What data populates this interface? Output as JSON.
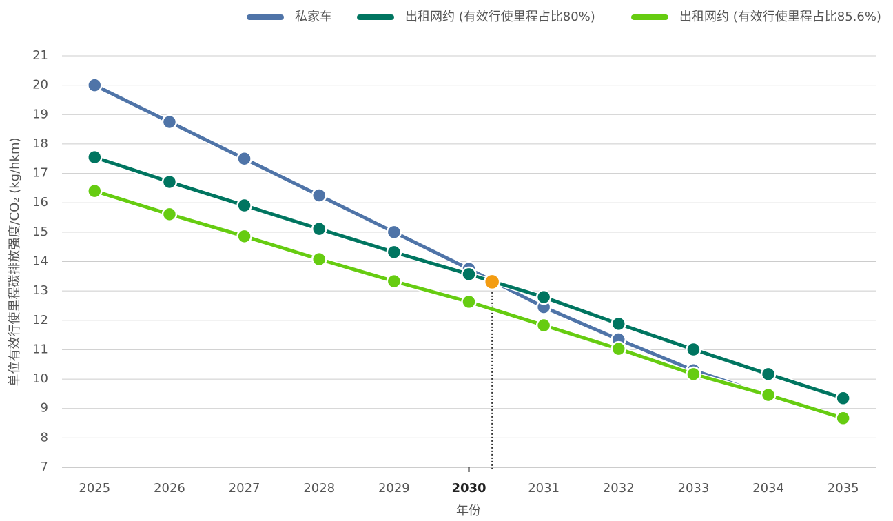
{
  "chart_data": {
    "type": "line",
    "x_label": "年份",
    "y_label": "单位有效行使里程碳排放强度/CO₂ (kg/hkm)",
    "categories": [
      "2025",
      "2026",
      "2027",
      "2028",
      "2029",
      "2030",
      "2031",
      "2032",
      "2033",
      "2034",
      "2035"
    ],
    "highlight_category": "2030",
    "series": [
      {
        "name": "私家车",
        "color": "#4f74a8",
        "values": [
          20,
          18.75,
          17.5,
          16.25,
          15.0,
          13.75,
          12.45,
          11.35,
          10.3,
          9.45,
          8.65
        ]
      },
      {
        "name": "出租网约 (有效行使里程占比80%)",
        "color": "#007560",
        "values": [
          17.55,
          16.71,
          15.91,
          15.11,
          14.32,
          13.57,
          12.79,
          11.88,
          11.01,
          10.17,
          9.35
        ]
      },
      {
        "name": "出租网约 (有效行使里程占比85.6%)",
        "color": "#66cc11",
        "values": [
          16.4,
          15.61,
          14.86,
          14.08,
          13.33,
          12.63,
          11.83,
          11.03,
          10.17,
          9.46,
          8.67
        ]
      }
    ],
    "crossover": {
      "year": 2030.31,
      "value": 13.31,
      "color": "#f39c12"
    },
    "ylim": [
      7,
      21
    ],
    "yticks": [
      7,
      8,
      9,
      10,
      11,
      12,
      13,
      14,
      15,
      16,
      17,
      18,
      19,
      20,
      21
    ],
    "grid": true,
    "legend": "top"
  }
}
